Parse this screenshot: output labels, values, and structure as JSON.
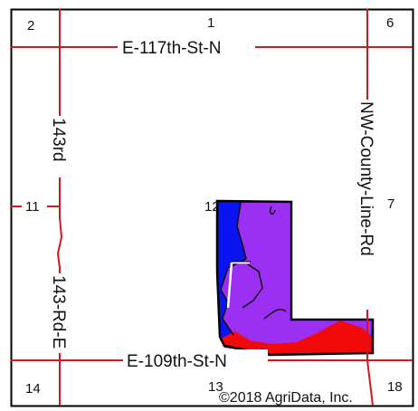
{
  "map": {
    "section_numbers": {
      "top_left": "2",
      "top_center": "1",
      "top_right": "6",
      "mid_left": "11",
      "field_corner": "12",
      "mid_right": "7",
      "bottom_left": "14",
      "bottom_center": "13",
      "bottom_right": "18"
    },
    "roads": {
      "north": "E-117th-St-N",
      "south": "E-109th-St-N",
      "west_upper": "143rd",
      "west_lower": "143-Rd-E",
      "east": "NW-County-Line-Rd"
    },
    "copyright": "©2018 AgriData, Inc.",
    "colors": {
      "road": "#d9141b",
      "zone_blue": "#0a14f0",
      "zone_purple": "#9b2ff2",
      "zone_red": "#f20a0a",
      "border": "#000000",
      "frame": "#000000"
    }
  }
}
